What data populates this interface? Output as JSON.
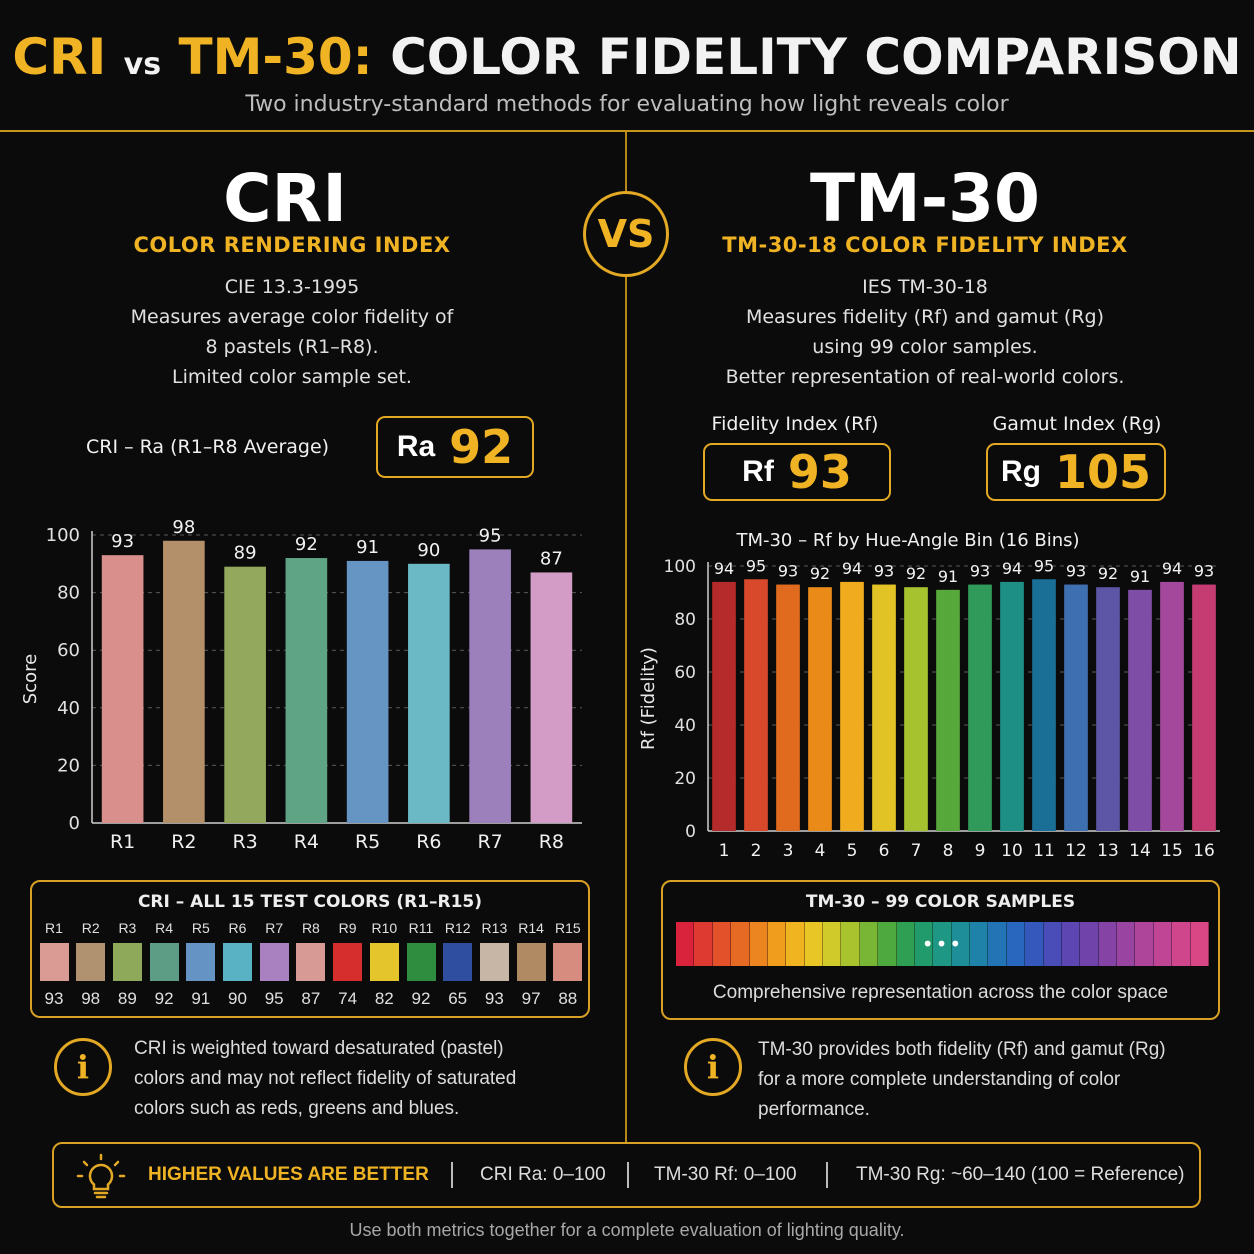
{
  "header": {
    "title_cri": "CRI",
    "title_vs": "vs",
    "title_tm30": "TM-30:",
    "title_rest": "COLOR FIDELITY COMPARISON",
    "subtitle": "Two industry-standard methods for evaluating how light reveals color"
  },
  "vs_badge": "VS",
  "cri": {
    "title": "CRI",
    "subtitle": "COLOR RENDERING INDEX",
    "standard": "CIE 13.3-1995",
    "desc_lines": [
      "Measures average color fidelity of",
      "8 pastels (R1–R8).",
      "Limited color sample set."
    ],
    "ra_label": "CRI – Ra  (R1–R8 Average)",
    "ra_prefix": "Ra",
    "ra_value": "92",
    "panel_title": "CRI – ALL 15 TEST COLORS (R1–R15)",
    "info": [
      "CRI is weighted toward desaturated (pastel)",
      "colors and may not reflect fidelity of saturated",
      "colors such as reds, greens and blues."
    ]
  },
  "tm30": {
    "title": "TM-30",
    "subtitle": "TM-30-18 COLOR FIDELITY INDEX",
    "standard": "IES TM-30-18",
    "desc_lines": [
      "Measures fidelity (Rf) and gamut (Rg)",
      "using 99 color samples.",
      "Better representation of real-world colors."
    ],
    "rf_label": "Fidelity Index (Rf)",
    "rf_prefix": "Rf",
    "rf_value": "93",
    "rg_label": "Gamut Index (Rg)",
    "rg_prefix": "Rg",
    "rg_value": "105",
    "panel_title": "TM-30 – 99 COLOR SAMPLES",
    "panel_ellipsis": "•••",
    "panel_caption": "Comprehensive representation across the color space",
    "info": [
      "TM-30 provides both fidelity (Rf) and gamut (Rg)",
      "for a more complete understanding of color",
      "performance."
    ]
  },
  "chart_data": [
    {
      "type": "bar",
      "title": "",
      "xlabel": "",
      "ylabel": "Score",
      "ylim": [
        0,
        100
      ],
      "yticks": [
        0,
        20,
        40,
        60,
        80,
        100
      ],
      "grid": true,
      "categories": [
        "R1",
        "R2",
        "R3",
        "R4",
        "R5",
        "R6",
        "R7",
        "R8"
      ],
      "values": [
        93,
        98,
        89,
        92,
        91,
        90,
        95,
        87
      ],
      "colors": [
        "#d98f8b",
        "#b3906a",
        "#93a85c",
        "#5fa585",
        "#6694c3",
        "#6cb9c6",
        "#9b80bc",
        "#d39cc6"
      ]
    },
    {
      "type": "bar",
      "title": "TM-30 – Rf by Hue-Angle Bin (16 Bins)",
      "xlabel": "",
      "ylabel": "Rf (Fidelity)",
      "ylim": [
        0,
        100
      ],
      "yticks": [
        0,
        20,
        40,
        60,
        80,
        100
      ],
      "grid": true,
      "categories": [
        "1",
        "2",
        "3",
        "4",
        "5",
        "6",
        "7",
        "8",
        "9",
        "10",
        "11",
        "12",
        "13",
        "14",
        "15",
        "16"
      ],
      "values": [
        94,
        95,
        93,
        92,
        94,
        93,
        92,
        91,
        93,
        94,
        95,
        93,
        92,
        91,
        94,
        93
      ],
      "colors": [
        "#b52a2a",
        "#d8492b",
        "#e06b1f",
        "#ea8b19",
        "#f0ac1e",
        "#e2c326",
        "#a6c22f",
        "#56a83a",
        "#2f9a5a",
        "#1d8f84",
        "#1a6f96",
        "#3e6fb0",
        "#5d55a6",
        "#7e4ea6",
        "#a4489c",
        "#c43c72"
      ]
    },
    {
      "type": "table",
      "title": "CRI – ALL 15 TEST COLORS (R1–R15)",
      "categories": [
        "R1",
        "R2",
        "R3",
        "R4",
        "R5",
        "R6",
        "R7",
        "R8",
        "R9",
        "R10",
        "R11",
        "R12",
        "R13",
        "R14",
        "R15"
      ],
      "values": [
        93,
        98,
        89,
        92,
        91,
        90,
        95,
        87,
        74,
        82,
        92,
        65,
        93,
        97,
        88
      ],
      "colors": [
        "#d99b93",
        "#b09270",
        "#8ea95a",
        "#5d9d85",
        "#6593c3",
        "#58b2c4",
        "#a980c0",
        "#d79a95",
        "#d62d2d",
        "#e4c52b",
        "#2f8d3f",
        "#2f4ea0",
        "#c7b6a6",
        "#b08a62",
        "#d68d80"
      ]
    }
  ],
  "tm30_spectrum": [
    "#d9233c",
    "#df3a31",
    "#e2512a",
    "#e76a24",
    "#ec8420",
    "#f09d1d",
    "#efb41f",
    "#e8c626",
    "#d0cb2a",
    "#a8c32e",
    "#7ab635",
    "#4ea93f",
    "#2f9f53",
    "#219a6c",
    "#1e9784",
    "#1e8f98",
    "#1f82a8",
    "#2374b5",
    "#2966bd",
    "#3558bd",
    "#4a4db8",
    "#5d45b2",
    "#7043ab",
    "#8543a6",
    "#9a44a1",
    "#ae459b",
    "#c04594",
    "#cf468c",
    "#d94884"
  ],
  "footer": {
    "highlight": "HIGHER VALUES ARE BETTER",
    "cri_range": "CRI Ra: 0–100",
    "rf_range": "TM-30 Rf: 0–100",
    "rg_range": "TM-30 Rg: ~60–140 (100 = Reference)",
    "note": "Use both metrics together for a complete evaluation of lighting quality."
  },
  "colors": {
    "accent": "#f0b324",
    "background": "#0b0b0b"
  }
}
